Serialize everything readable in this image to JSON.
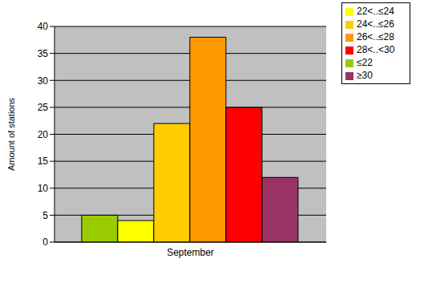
{
  "chart_data": {
    "type": "bar",
    "categories": [
      "September"
    ],
    "y_label": "Amount of stations",
    "series": [
      {
        "name": "≤22",
        "color": "#99cc00",
        "values": [
          5
        ]
      },
      {
        "name": "22<..≤24",
        "color": "#ffff00",
        "values": [
          4
        ]
      },
      {
        "name": "24<..≤26",
        "color": "#ffcc00",
        "values": [
          22
        ]
      },
      {
        "name": "26<..≤28",
        "color": "#ff9900",
        "values": [
          38
        ]
      },
      {
        "name": "28<..<30",
        "color": "#ff0000",
        "values": [
          25
        ]
      },
      {
        "name": "≥30",
        "color": "#993366",
        "values": [
          12
        ]
      }
    ],
    "ylim": [
      0,
      40
    ],
    "yticks": [
      0,
      5,
      10,
      15,
      20,
      25,
      30,
      35,
      40
    ],
    "grid": true,
    "legend": "upper right"
  }
}
